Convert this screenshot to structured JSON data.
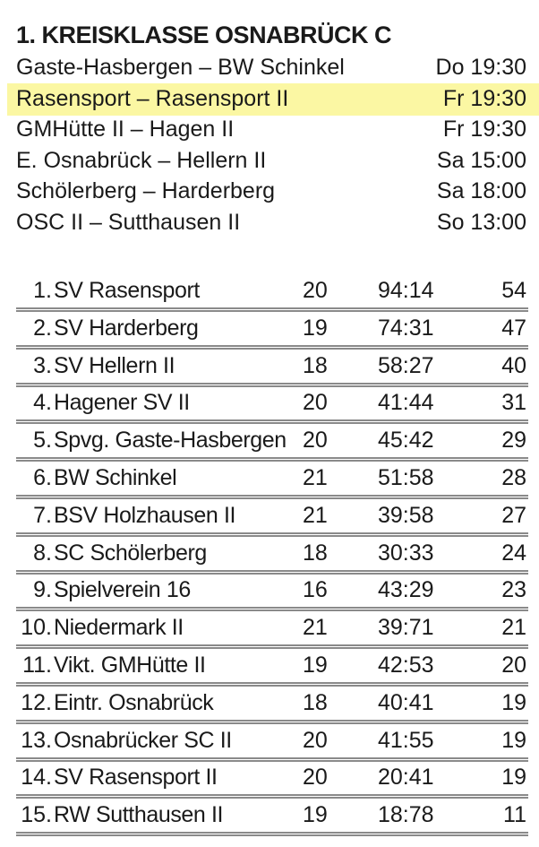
{
  "header": {
    "title": "1. KREISKLASSE OSNABRÜCK C"
  },
  "fixtures": [
    {
      "match": "Gaste-Hasbergen – BW Schinkel",
      "time": "Do 19:30"
    },
    {
      "match": "Rasensport – Rasensport II",
      "time": "Fr 19:30"
    },
    {
      "match": "GMHütte II – Hagen II",
      "time": "Fr 19:30"
    },
    {
      "match": "E. Osnabrück – Hellern II",
      "time": "Sa 15:00"
    },
    {
      "match": "Schölerberg – Harderberg",
      "time": "Sa 18:00"
    },
    {
      "match": "OSC II – Sutthausen II",
      "time": "So 13:00"
    }
  ],
  "table": {
    "rows": [
      [
        "1.",
        "SV Rasensport",
        20,
        "94:14",
        54
      ],
      [
        "2.",
        "SV Harderberg",
        19,
        "74:31",
        47
      ],
      [
        "3.",
        "SV Hellern II",
        18,
        "58:27",
        40
      ],
      [
        "4.",
        "Hagener SV II",
        20,
        "41:44",
        31
      ],
      [
        "5.",
        "Spvg. Gaste-Hasbergen",
        20,
        "45:42",
        29
      ],
      [
        "6.",
        "BW Schinkel",
        21,
        "51:58",
        28
      ],
      [
        "7.",
        "BSV Holzhausen II",
        21,
        "39:58",
        27
      ],
      [
        "8.",
        "SC Schölerberg",
        18,
        "30:33",
        24
      ],
      [
        "9.",
        "Spielverein 16",
        16,
        "43:29",
        23
      ],
      [
        "10.",
        "Niedermark II",
        21,
        "39:71",
        21
      ],
      [
        "11.",
        "Vikt. GMHütte II",
        19,
        "42:53",
        20
      ],
      [
        "12.",
        "Eintr. Osnabrück",
        18,
        "40:41",
        19
      ],
      [
        "13.",
        "Osnabrücker SC II",
        20,
        "41:55",
        19
      ],
      [
        "14.",
        "SV Rasensport II",
        20,
        "20:41",
        19
      ],
      [
        "15.",
        "RW Sutthausen II",
        19,
        "18:78",
        11
      ]
    ]
  }
}
